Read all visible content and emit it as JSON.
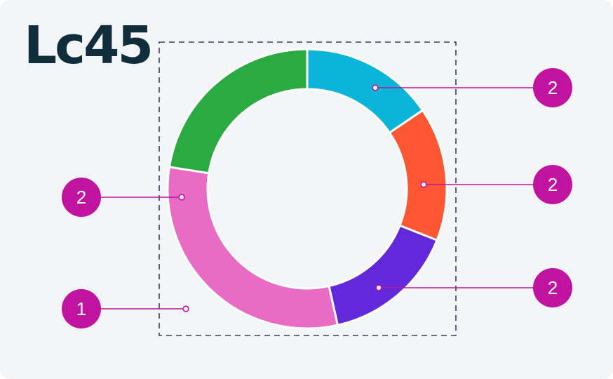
{
  "logo": {
    "text": "Lc45",
    "color": "#0f2d3a"
  },
  "colors": {
    "callout": "#c0139f",
    "frame": "#3a3a6a",
    "background": "#f4f5f7"
  },
  "chart_data": {
    "type": "pie",
    "variant": "donut",
    "segments": [
      {
        "color": "#0bb5d9",
        "fraction": 0.155
      },
      {
        "color": "#ff5733",
        "fraction": 0.155
      },
      {
        "color": "#6229db",
        "fraction": 0.155
      },
      {
        "color": "#e86bc4",
        "fraction": 0.31
      },
      {
        "color": "#2aab42",
        "fraction": 0.225
      }
    ]
  },
  "callouts": [
    {
      "number": "2",
      "target": "cyan-segment"
    },
    {
      "number": "2",
      "target": "orange-segment"
    },
    {
      "number": "2",
      "target": "purple-segment"
    },
    {
      "number": "2",
      "target": "pink-segment"
    },
    {
      "number": "1",
      "target": "bounding-frame"
    }
  ]
}
